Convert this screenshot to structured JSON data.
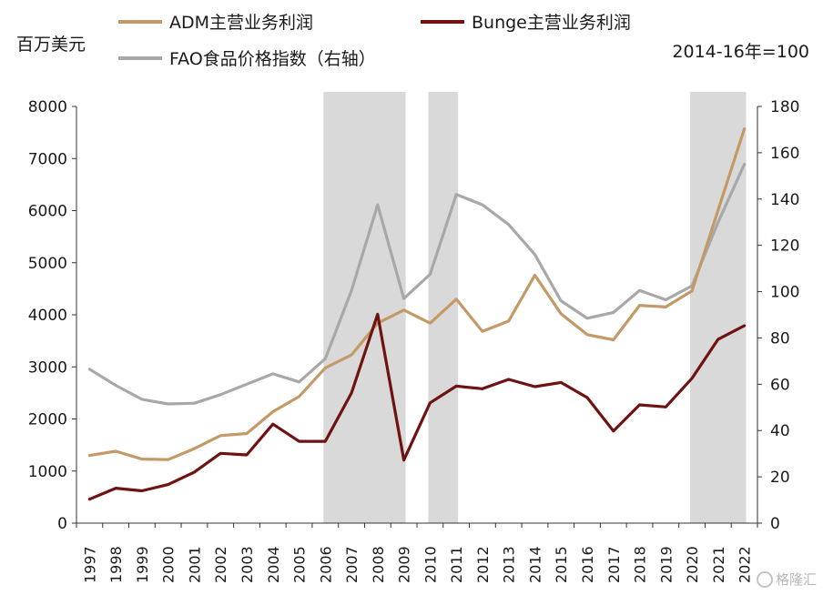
{
  "chart_data": {
    "type": "line",
    "left_axis_unit": "百万美元",
    "right_axis_unit": "2014-16年=100",
    "x": [
      "1997",
      "1998",
      "1999",
      "2000",
      "2001",
      "2002",
      "2003",
      "2004",
      "2005",
      "2006",
      "2007",
      "2008",
      "2009",
      "2010",
      "2011",
      "2012",
      "2013",
      "2014",
      "2015",
      "2016",
      "2017",
      "2018",
      "2019",
      "2020",
      "2021",
      "2022"
    ],
    "y_left_ticks": [
      "0",
      "1000",
      "2000",
      "3000",
      "4000",
      "5000",
      "6000",
      "7000",
      "8000"
    ],
    "y_right_ticks": [
      "0",
      "20",
      "40",
      "60",
      "80",
      "100",
      "120",
      "140",
      "160",
      "180"
    ],
    "ylim_left": [
      0,
      8000
    ],
    "ylim_right": [
      0,
      180
    ],
    "legend_position": "top",
    "series": [
      {
        "name": "ADM主营业务利润",
        "axis": "left",
        "color": "#c39a67",
        "values": [
          1300,
          1380,
          1230,
          1220,
          1430,
          1680,
          1720,
          2140,
          2430,
          2980,
          3230,
          3840,
          4090,
          3840,
          4300,
          3680,
          3880,
          4760,
          4020,
          3620,
          3520,
          4180,
          4150,
          4460,
          6010,
          7570
        ]
      },
      {
        "name": "Bunge主营业务利润",
        "axis": "left",
        "color": "#6e1212",
        "values": [
          460,
          670,
          620,
          740,
          980,
          1340,
          1310,
          1900,
          1570,
          1570,
          2500,
          4010,
          1210,
          2310,
          2630,
          2580,
          2760,
          2620,
          2700,
          2410,
          1770,
          2270,
          2230,
          2780,
          3530,
          3790
        ]
      },
      {
        "name": "FAO食品价格指数（右轴）",
        "axis": "right",
        "color": "#a8a8a8",
        "values": [
          66.5,
          59.5,
          53.5,
          51.5,
          51.8,
          55.5,
          60,
          64.5,
          61,
          71,
          100.5,
          137.5,
          97,
          107.5,
          142,
          137.5,
          129,
          116,
          96,
          88.5,
          91,
          100.5,
          96.5,
          102.5,
          130,
          155
        ]
      }
    ],
    "shaded_periods": [
      [
        "2006",
        "2009"
      ],
      [
        "2010",
        "2011"
      ],
      [
        "2020",
        "2022"
      ]
    ]
  },
  "watermark": "格隆汇"
}
